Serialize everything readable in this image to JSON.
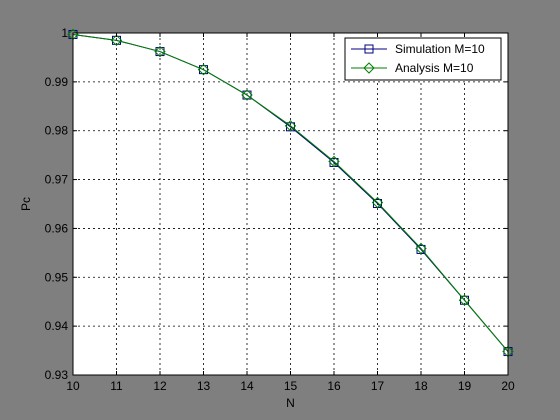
{
  "chart_data": {
    "type": "line",
    "title": "",
    "xlabel": "N",
    "ylabel": "Pc",
    "xlim": [
      10,
      20
    ],
    "ylim": [
      0.93,
      1
    ],
    "x_ticks": [
      "10",
      "11",
      "12",
      "13",
      "14",
      "15",
      "16",
      "17",
      "18",
      "19",
      "20"
    ],
    "y_ticks": [
      "0.93",
      "0.94",
      "0.95",
      "0.96",
      "0.97",
      "0.98",
      "0.99",
      "1"
    ],
    "grid": true,
    "legend_position": "top-right",
    "x": [
      10,
      11,
      12,
      13,
      14,
      15,
      16,
      17,
      18,
      19,
      20
    ],
    "series": [
      {
        "name": "Simulation M=10",
        "color": "#000080",
        "marker": "square",
        "values": [
          0.9997,
          0.9985,
          0.9962,
          0.9925,
          0.9873,
          0.9808,
          0.9735,
          0.9651,
          0.9557,
          0.9453,
          0.9348
        ]
      },
      {
        "name": "Analysis M=10",
        "color": "#007f00",
        "marker": "diamond",
        "values": [
          0.9997,
          0.9985,
          0.9962,
          0.9925,
          0.9873,
          0.981,
          0.9737,
          0.9653,
          0.9559,
          0.9453,
          0.9348
        ]
      }
    ]
  }
}
